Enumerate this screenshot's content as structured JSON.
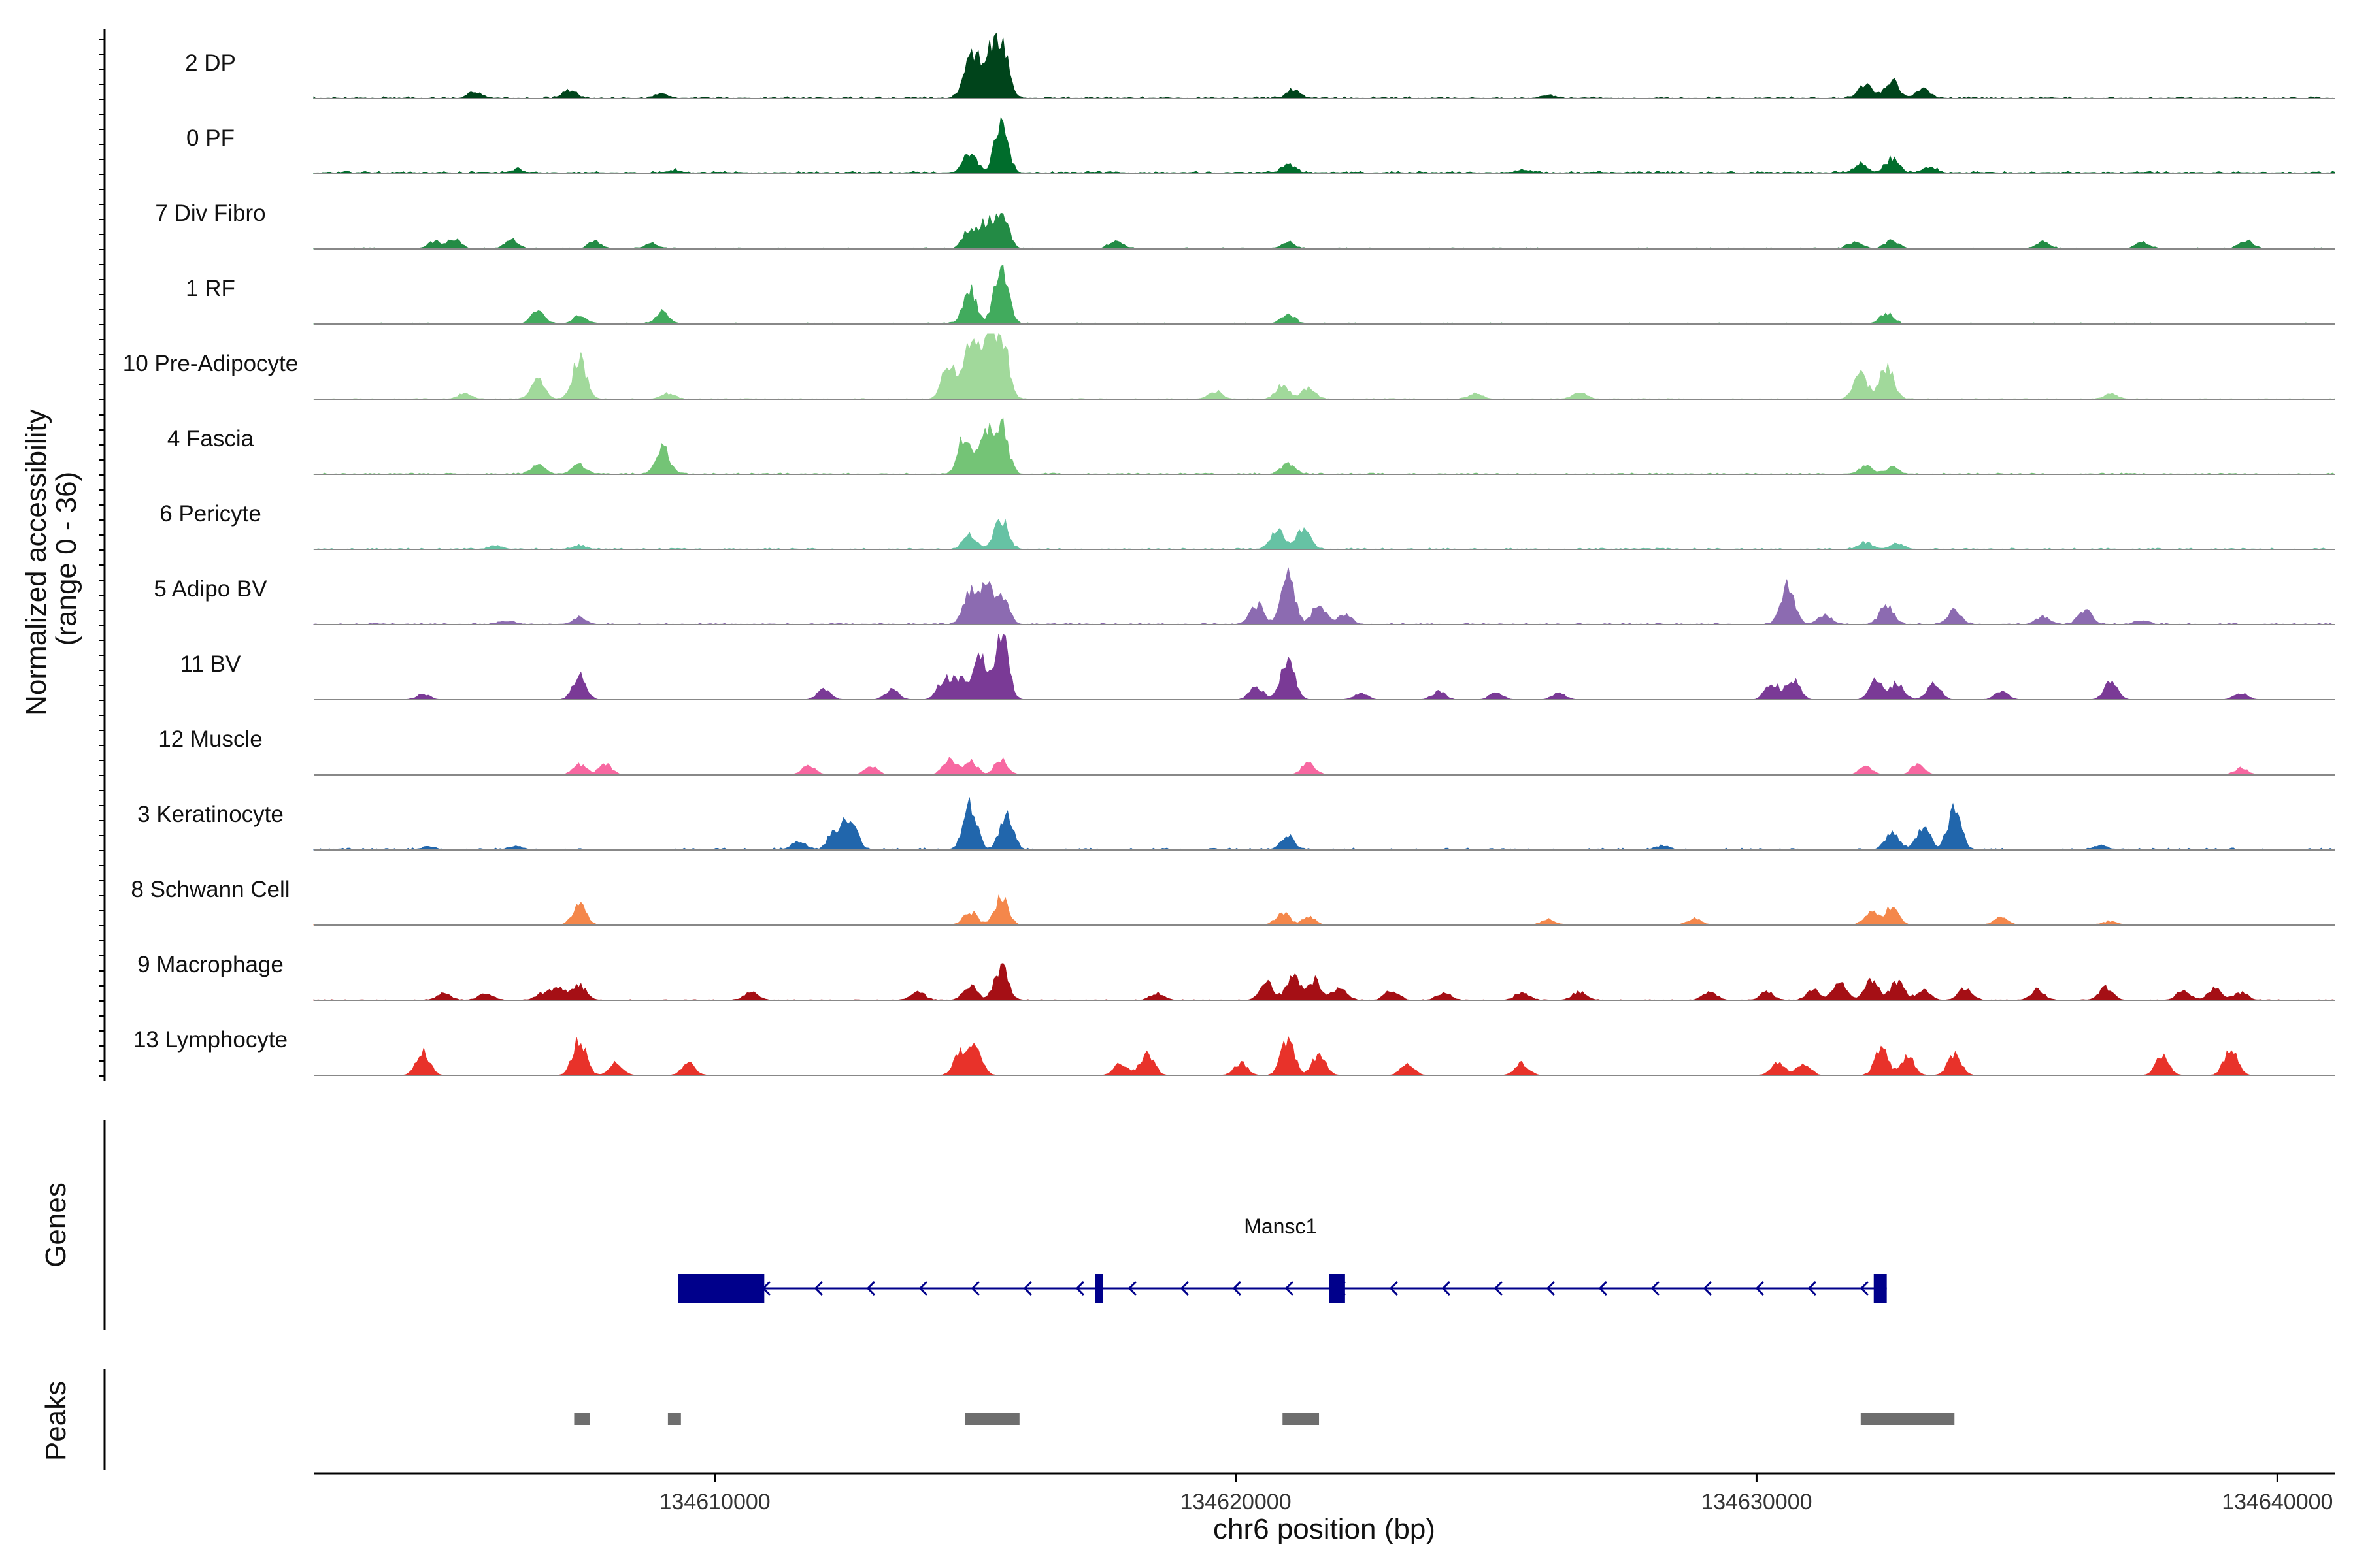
{
  "chart_data": {
    "type": "area",
    "region": {
      "chrom": "chr6",
      "start": 134602300,
      "end": 134641100
    },
    "x_axis": {
      "label": "chr6 position (bp)",
      "ticks": [
        134610000,
        134620000,
        134630000,
        134640000
      ],
      "tick_labels": [
        "134610000",
        "134620000",
        "134630000",
        "134640000"
      ]
    },
    "y_axis": {
      "label_line1": "Normalized accessibility",
      "label_line2": "(range 0 - 36)",
      "range": [
        0,
        36
      ]
    },
    "tracks": [
      {
        "name": "2 DP",
        "color": "#00441b",
        "peaks": [
          [
            134605400,
            0.1
          ],
          [
            134607200,
            0.12
          ],
          [
            134609000,
            0.06
          ],
          [
            134614900,
            0.55
          ],
          [
            134615200,
            0.62
          ],
          [
            134615500,
            0.95
          ],
          [
            134621100,
            0.12
          ],
          [
            134626000,
            0.05
          ],
          [
            134632100,
            0.22
          ],
          [
            134632600,
            0.25
          ],
          [
            134633200,
            0.14
          ]
        ],
        "background": 0.03
      },
      {
        "name": "0 PF",
        "color": "#006d2c",
        "peaks": [
          [
            134606200,
            0.06
          ],
          [
            134609200,
            0.05
          ],
          [
            134614900,
            0.32
          ],
          [
            134615500,
            0.7
          ],
          [
            134621000,
            0.14
          ],
          [
            134625500,
            0.05
          ],
          [
            134632000,
            0.15
          ],
          [
            134632600,
            0.22
          ],
          [
            134633300,
            0.1
          ]
        ],
        "background": 0.04
      },
      {
        "name": "7 Div Fibro",
        "color": "#238b45",
        "peaks": [
          [
            134604600,
            0.1
          ],
          [
            134605000,
            0.13
          ],
          [
            134606100,
            0.12
          ],
          [
            134607700,
            0.11
          ],
          [
            134608800,
            0.08
          ],
          [
            134614900,
            0.3
          ],
          [
            134615200,
            0.35
          ],
          [
            134615500,
            0.6
          ],
          [
            134617700,
            0.12
          ],
          [
            134621000,
            0.1
          ],
          [
            134631900,
            0.11
          ],
          [
            134632600,
            0.13
          ],
          [
            134635500,
            0.1
          ],
          [
            134637400,
            0.1
          ],
          [
            134639400,
            0.12
          ]
        ],
        "background": 0.02
      },
      {
        "name": "1 RF",
        "color": "#41ab5d",
        "peaks": [
          [
            134606600,
            0.18
          ],
          [
            134607400,
            0.12
          ],
          [
            134609000,
            0.18
          ],
          [
            134614900,
            0.5
          ],
          [
            134615500,
            0.9
          ],
          [
            134621000,
            0.15
          ],
          [
            134632500,
            0.16
          ]
        ],
        "background": 0.02
      },
      {
        "name": "10 Pre-Adipocyte",
        "color": "#a1d99b",
        "peaks": [
          [
            134605200,
            0.08
          ],
          [
            134606600,
            0.28
          ],
          [
            134607400,
            0.6
          ],
          [
            134609100,
            0.08
          ],
          [
            134614500,
            0.55
          ],
          [
            134614900,
            0.75
          ],
          [
            134615200,
            0.9
          ],
          [
            134615500,
            1.0
          ],
          [
            134619600,
            0.12
          ],
          [
            134620900,
            0.2
          ],
          [
            134621400,
            0.16
          ],
          [
            134624600,
            0.08
          ],
          [
            134626600,
            0.1
          ],
          [
            134632000,
            0.4
          ],
          [
            134632500,
            0.5
          ],
          [
            134636800,
            0.08
          ]
        ],
        "background": 0.01
      },
      {
        "name": "4 Fascia",
        "color": "#74c476",
        "peaks": [
          [
            134606600,
            0.15
          ],
          [
            134607400,
            0.15
          ],
          [
            134609000,
            0.4
          ],
          [
            134614800,
            0.55
          ],
          [
            134615200,
            0.62
          ],
          [
            134615500,
            0.7
          ],
          [
            134621000,
            0.15
          ],
          [
            134632100,
            0.12
          ],
          [
            134632600,
            0.1
          ]
        ],
        "background": 0.02
      },
      {
        "name": "6 Pericyte",
        "color": "#66c2a4",
        "peaks": [
          [
            134605800,
            0.05
          ],
          [
            134607400,
            0.06
          ],
          [
            134614900,
            0.22
          ],
          [
            134615500,
            0.45
          ],
          [
            134620800,
            0.3
          ],
          [
            134621300,
            0.3
          ],
          [
            134632100,
            0.1
          ],
          [
            134632700,
            0.08
          ]
        ],
        "background": 0.02
      },
      {
        "name": "5 Adipo BV",
        "color": "#8c6bb1",
        "peaks": [
          [
            134606000,
            0.05
          ],
          [
            134607400,
            0.1
          ],
          [
            134614900,
            0.45
          ],
          [
            134615200,
            0.5
          ],
          [
            134615500,
            0.48
          ],
          [
            134620400,
            0.3
          ],
          [
            134621000,
            0.75
          ],
          [
            134621600,
            0.3
          ],
          [
            134622100,
            0.15
          ],
          [
            134630600,
            0.55
          ],
          [
            134631300,
            0.15
          ],
          [
            134632500,
            0.3
          ],
          [
            134633800,
            0.2
          ],
          [
            134635500,
            0.12
          ],
          [
            134636300,
            0.22
          ],
          [
            134637400,
            0.06
          ]
        ],
        "background": 0.02
      },
      {
        "name": "11 BV",
        "color": "#7a3a96",
        "peaks": [
          [
            134604400,
            0.08
          ],
          [
            134607400,
            0.35
          ],
          [
            134612100,
            0.15
          ],
          [
            134613400,
            0.15
          ],
          [
            134614400,
            0.3
          ],
          [
            134614700,
            0.3
          ],
          [
            134615100,
            0.6
          ],
          [
            134615500,
            1.0
          ],
          [
            134620400,
            0.2
          ],
          [
            134621000,
            0.65
          ],
          [
            134622400,
            0.1
          ],
          [
            134623900,
            0.12
          ],
          [
            134625000,
            0.1
          ],
          [
            134626200,
            0.1
          ],
          [
            134630300,
            0.25
          ],
          [
            134630700,
            0.3
          ],
          [
            134632300,
            0.3
          ],
          [
            134632700,
            0.25
          ],
          [
            134633400,
            0.25
          ],
          [
            134634700,
            0.12
          ],
          [
            134636800,
            0.25
          ],
          [
            134639300,
            0.1
          ]
        ],
        "background": 0.0
      },
      {
        "name": "12 Muscle",
        "color": "#f768a1",
        "peaks": [
          [
            134607400,
            0.15
          ],
          [
            134607900,
            0.15
          ],
          [
            134611800,
            0.15
          ],
          [
            134613000,
            0.12
          ],
          [
            134614500,
            0.22
          ],
          [
            134614900,
            0.22
          ],
          [
            134615500,
            0.22
          ],
          [
            134621400,
            0.18
          ],
          [
            134632100,
            0.12
          ],
          [
            134633100,
            0.15
          ],
          [
            134639300,
            0.1
          ]
        ],
        "background": 0.0
      },
      {
        "name": "3 Keratinocyte",
        "color": "#2166ac",
        "peaks": [
          [
            134604500,
            0.05
          ],
          [
            134606200,
            0.05
          ],
          [
            134611600,
            0.12
          ],
          [
            134612300,
            0.25
          ],
          [
            134612600,
            0.5
          ],
          [
            134614900,
            0.7
          ],
          [
            134615600,
            0.5
          ],
          [
            134621000,
            0.2
          ],
          [
            134628200,
            0.06
          ],
          [
            134632600,
            0.25
          ],
          [
            134633200,
            0.35
          ],
          [
            134633800,
            0.6
          ],
          [
            134636600,
            0.06
          ]
        ],
        "background": 0.03
      },
      {
        "name": "8 Schwann Cell",
        "color": "#f4874b",
        "peaks": [
          [
            134607400,
            0.3
          ],
          [
            134614900,
            0.2
          ],
          [
            134615500,
            0.4
          ],
          [
            134620900,
            0.18
          ],
          [
            134621400,
            0.12
          ],
          [
            134626000,
            0.1
          ],
          [
            134628800,
            0.1
          ],
          [
            134632200,
            0.2
          ],
          [
            134632600,
            0.28
          ],
          [
            134634700,
            0.12
          ],
          [
            134636800,
            0.06
          ]
        ],
        "background": 0.01
      },
      {
        "name": "9 Macrophage",
        "color": "#a50f15",
        "peaks": [
          [
            134604800,
            0.1
          ],
          [
            134605600,
            0.1
          ],
          [
            134606700,
            0.1
          ],
          [
            134607000,
            0.2
          ],
          [
            134607400,
            0.22
          ],
          [
            134610700,
            0.12
          ],
          [
            134613900,
            0.12
          ],
          [
            134614900,
            0.22
          ],
          [
            134615500,
            0.5
          ],
          [
            134618500,
            0.1
          ],
          [
            134620600,
            0.25
          ],
          [
            134621100,
            0.35
          ],
          [
            134621500,
            0.3
          ],
          [
            134622000,
            0.2
          ],
          [
            134623000,
            0.15
          ],
          [
            134624000,
            0.12
          ],
          [
            134625500,
            0.12
          ],
          [
            134626600,
            0.12
          ],
          [
            134629100,
            0.12
          ],
          [
            134630200,
            0.12
          ],
          [
            134631100,
            0.15
          ],
          [
            134631600,
            0.25
          ],
          [
            134632200,
            0.3
          ],
          [
            134632700,
            0.28
          ],
          [
            134633200,
            0.15
          ],
          [
            134634000,
            0.18
          ],
          [
            134635400,
            0.15
          ],
          [
            134636700,
            0.2
          ],
          [
            134638200,
            0.15
          ],
          [
            134638800,
            0.18
          ],
          [
            134639300,
            0.12
          ]
        ],
        "background": 0.01
      },
      {
        "name": "13 Lymphocyte",
        "color": "#e8322a",
        "peaks": [
          [
            134604400,
            0.35
          ],
          [
            134607400,
            0.55
          ],
          [
            134608100,
            0.18
          ],
          [
            134609500,
            0.18
          ],
          [
            134614700,
            0.3
          ],
          [
            134615000,
            0.42
          ],
          [
            134617800,
            0.18
          ],
          [
            134618300,
            0.35
          ],
          [
            134620100,
            0.18
          ],
          [
            134621000,
            0.52
          ],
          [
            134621600,
            0.3
          ],
          [
            134623300,
            0.18
          ],
          [
            134625500,
            0.18
          ],
          [
            134630400,
            0.2
          ],
          [
            134630900,
            0.18
          ],
          [
            134632400,
            0.38
          ],
          [
            134632900,
            0.28
          ],
          [
            134633800,
            0.32
          ],
          [
            134637800,
            0.3
          ],
          [
            134639100,
            0.38
          ]
        ],
        "background": 0.0
      }
    ],
    "genes": {
      "label": "Genes",
      "items": [
        {
          "name": "Mansc1",
          "strand": "-",
          "start": 134609300,
          "end": 134632500,
          "exons": [
            [
              134609300,
              134610950
            ],
            [
              134617300,
              134617450
            ],
            [
              134621800,
              134622100
            ],
            [
              134632250,
              134632500
            ]
          ]
        }
      ]
    },
    "peaks_track": {
      "label": "Peaks",
      "color": "#6e6e6e",
      "regions": [
        [
          134607300,
          134607600
        ],
        [
          134609100,
          134609350
        ],
        [
          134614800,
          134615850
        ],
        [
          134620900,
          134621600
        ],
        [
          134632000,
          134633800
        ]
      ]
    }
  }
}
